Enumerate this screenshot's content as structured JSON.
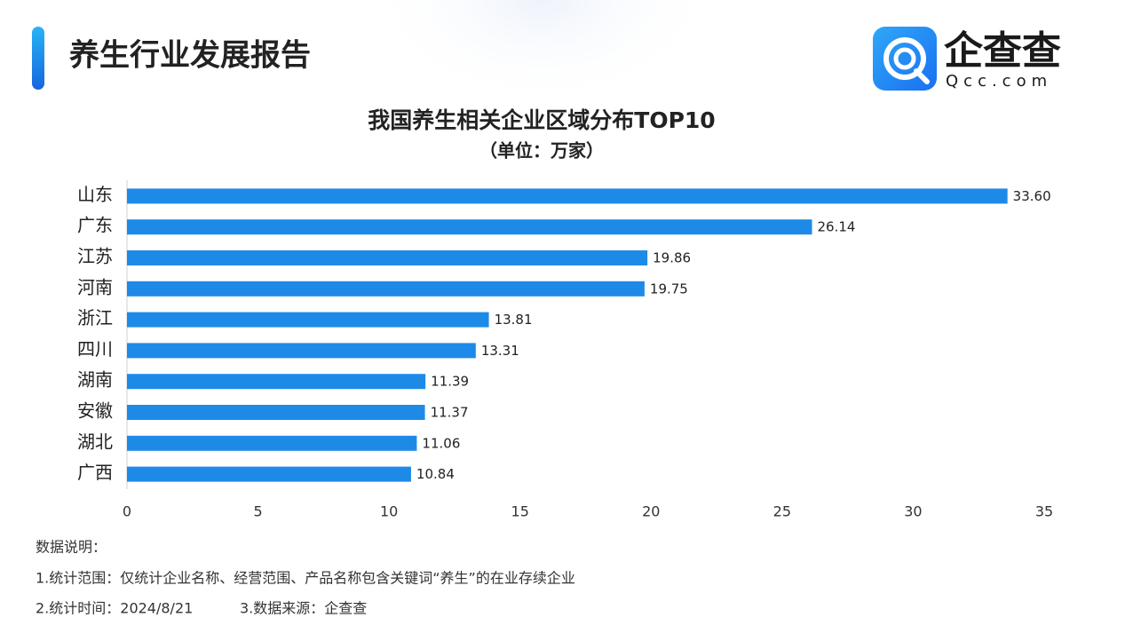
{
  "header": {
    "title": "养生行业发展报告",
    "logo_text": "企查查",
    "logo_url": "Qcc.com"
  },
  "chart_data": {
    "type": "hbar",
    "title": "我国养生相关企业区域分布TOP10",
    "subtitle": "（单位：万家）",
    "categories": [
      "山东",
      "广东",
      "江苏",
      "河南",
      "浙江",
      "四川",
      "湖南",
      "安徽",
      "湖北",
      "广西"
    ],
    "values": [
      33.6,
      26.14,
      19.86,
      19.75,
      13.81,
      13.31,
      11.39,
      11.37,
      11.06,
      10.84
    ],
    "value_labels": [
      "33.60",
      "26.14",
      "19.86",
      "19.75",
      "13.81",
      "13.31",
      "11.39",
      "11.37",
      "11.06",
      "10.84"
    ],
    "color": "#1e8ae8",
    "xlim": [
      0,
      35
    ],
    "xticks": [
      0,
      5,
      10,
      15,
      20,
      25,
      30,
      35
    ],
    "grid": false
  },
  "notes": {
    "heading": "数据说明：",
    "line1": "1.统计范围：仅统计企业名称、经营范围、产品名称包含关键词“养生”的在业存续企业",
    "line2": "2.统计时间：2024/8/21",
    "line3": "3.数据来源：企查查"
  }
}
